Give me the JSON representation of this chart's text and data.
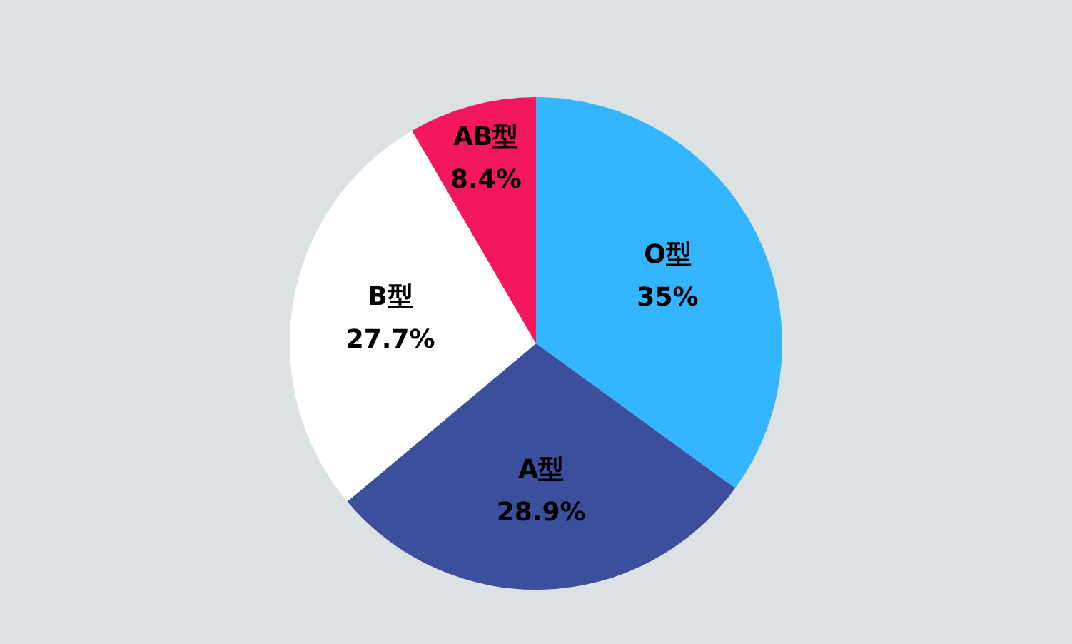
{
  "chart_data": {
    "type": "pie",
    "categories": [
      "O型",
      "A型",
      "B型",
      "AB型"
    ],
    "values": [
      35,
      28.9,
      27.7,
      8.4
    ],
    "colors": [
      "#33b5ff",
      "#3b4f9c",
      "#ffffff",
      "#f5175e"
    ],
    "value_labels": [
      "35%",
      "28.9%",
      "27.7%",
      "8.4%"
    ],
    "legend": false
  }
}
